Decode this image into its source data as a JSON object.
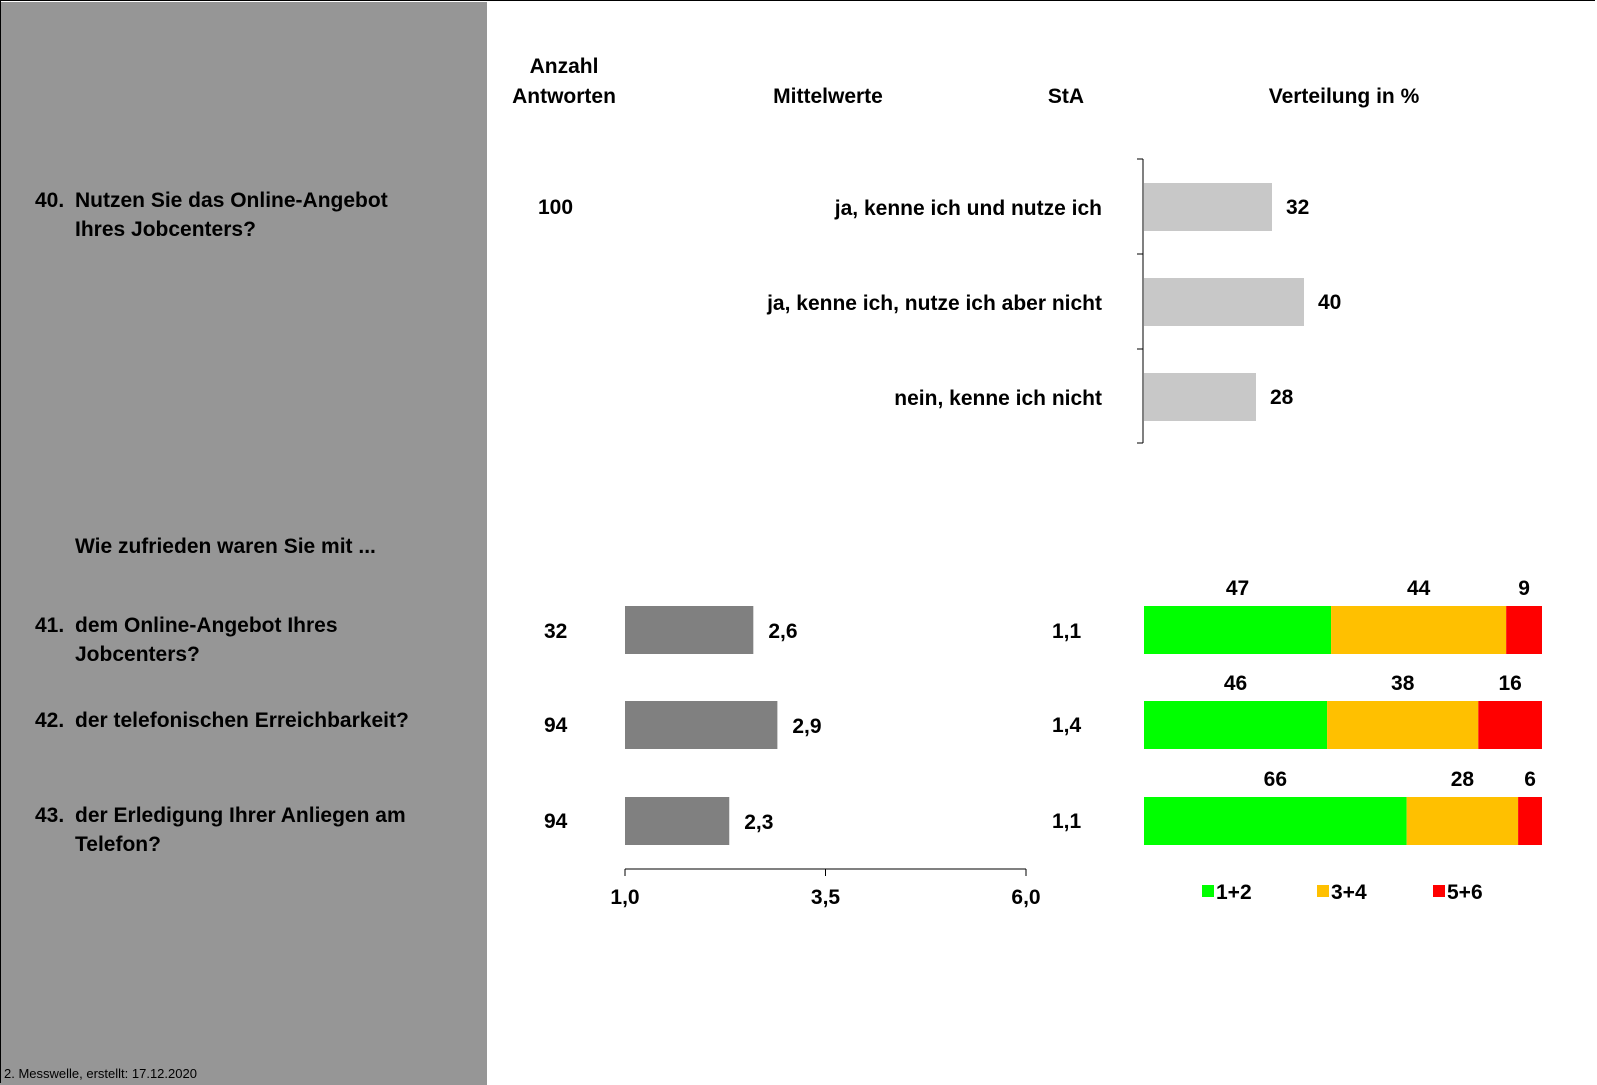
{
  "headers": {
    "anzahl_line1": "Anzahl",
    "anzahl_line2": "Antworten",
    "mittelwerte": "Mittelwerte",
    "sta": "StA",
    "verteilung": "Verteilung in %"
  },
  "q40": {
    "number": "40.",
    "line1": "Nutzen Sie das Online-Angebot",
    "line2": "Ihres Jobcenters?",
    "count": "100"
  },
  "section_title": "Wie zufrieden waren Sie mit ...",
  "q41": {
    "number": "41.",
    "line1": "dem Online-Angebot Ihres",
    "line2": "Jobcenters?",
    "count": "32",
    "sta": "1,1"
  },
  "q42": {
    "number": "42.",
    "line1": "der telefonischen Erreichbarkeit?",
    "count": "94",
    "sta": "1,4"
  },
  "q43": {
    "number": "43.",
    "line1": "der Erledigung Ihrer Anliegen am",
    "line2": "Telefon?",
    "count": "94",
    "sta": "1,1"
  },
  "footer": "2. Messwelle, erstellt: 17.12.2020",
  "colors": {
    "sidebar": "#969696",
    "answer_bar": "#c8c8c8",
    "mean_bar": "#808080",
    "green": "#00ff00",
    "orange": "#ffc000",
    "red": "#ff0000"
  },
  "chart_data": [
    {
      "type": "bar",
      "orientation": "horizontal",
      "categories": [
        "ja, kenne ich und nutze ich",
        "ja, kenne ich, nutze ich aber nicht",
        "nein, kenne ich nicht"
      ],
      "values": [
        32,
        40,
        28
      ],
      "value_labels": [
        "32",
        "40",
        "28"
      ],
      "xlim": [
        0,
        100
      ]
    },
    {
      "type": "bar",
      "orientation": "horizontal",
      "categories": [
        "41",
        "42",
        "43"
      ],
      "values": [
        2.6,
        2.9,
        2.3
      ],
      "value_labels": [
        "2,6",
        "2,9",
        "2,3"
      ],
      "xlim": [
        1.0,
        6.0
      ],
      "ticks": [
        1.0,
        3.5,
        6.0
      ],
      "tick_labels": [
        "1,0",
        "3,5",
        "6,0"
      ]
    },
    {
      "type": "bar",
      "stacked": true,
      "orientation": "horizontal",
      "categories": [
        "41",
        "42",
        "43"
      ],
      "series": [
        {
          "name": "1+2",
          "values": [
            47,
            46,
            66
          ],
          "color": "#00ff00"
        },
        {
          "name": "3+4",
          "values": [
            44,
            38,
            28
          ],
          "color": "#ffc000"
        },
        {
          "name": "5+6",
          "values": [
            9,
            16,
            6
          ],
          "color": "#ff0000"
        }
      ],
      "legend": "bottom"
    }
  ]
}
